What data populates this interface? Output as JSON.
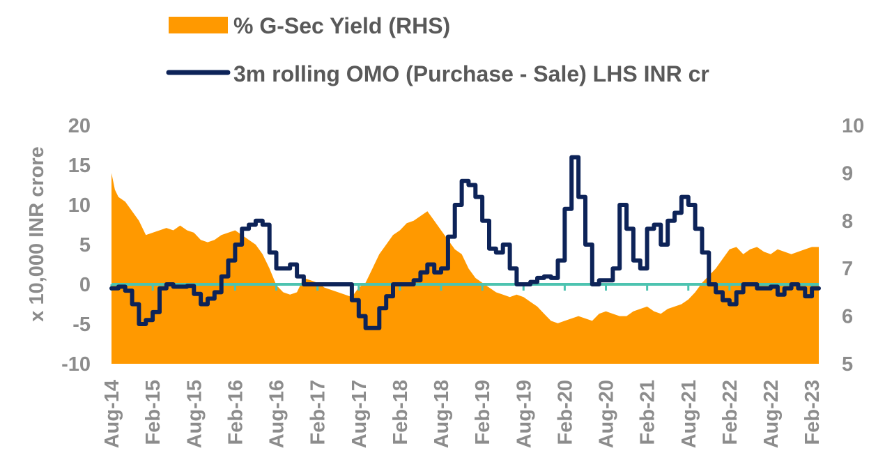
{
  "chart_data": {
    "type": "area+line (dual axis)",
    "title": "",
    "ylabel_left": "x 10,000 INR crore",
    "ylabel_right": "",
    "ylim_left": [
      -10,
      20
    ],
    "ylim_right": [
      5,
      10
    ],
    "yticks_left": [
      "20",
      "15",
      "10",
      "5",
      "0",
      "-5",
      "-10"
    ],
    "yticks_right": [
      "10",
      "9",
      "8",
      "7",
      "6",
      "5"
    ],
    "x_tick_labels": [
      "Aug-14",
      "Feb-15",
      "Aug-15",
      "Feb-16",
      "Aug-16",
      "Feb-17",
      "Aug-17",
      "Feb-18",
      "Aug-18",
      "Feb-19",
      "Aug-19",
      "Feb-20",
      "Aug-20",
      "Feb-21",
      "Aug-21",
      "Feb-22",
      "Aug-22",
      "Feb-23"
    ],
    "legend": [
      {
        "label": "% G-Sec Yield (RHS)",
        "color": "#FF9900",
        "kind": "area"
      },
      {
        "label": "3m rolling OMO (Purchase - Sale) LHS INR cr",
        "color": "#0D2358",
        "kind": "line"
      }
    ],
    "zero_line_color": "#4DC3B0",
    "series": [
      {
        "name": "% G-Sec Yield (RHS)",
        "axis": "right",
        "x_months_from_aug14": [
          0,
          0.5,
          1,
          2,
          3,
          4,
          5,
          6,
          7,
          8,
          9,
          10,
          11,
          12,
          13,
          14,
          15,
          16,
          17,
          18,
          19,
          20,
          21,
          22,
          23,
          24,
          25,
          26,
          27,
          28,
          29,
          30,
          31,
          32,
          33,
          34,
          35,
          36,
          37,
          38,
          39,
          40,
          41,
          42,
          43,
          44,
          45,
          46,
          47,
          48,
          49,
          50,
          51,
          52,
          53,
          54,
          55,
          56,
          57,
          58,
          59,
          60,
          61,
          62,
          63,
          64,
          65,
          66,
          67,
          68,
          69,
          70,
          71,
          72,
          73,
          74,
          75,
          76,
          77,
          78,
          79,
          80,
          81,
          82,
          83,
          84,
          85,
          86,
          87,
          88,
          89,
          90,
          91,
          92,
          93,
          94,
          95,
          96,
          97,
          98,
          99,
          100,
          101,
          102,
          103
        ],
        "values": [
          9.0,
          8.65,
          8.5,
          8.4,
          8.2,
          8.0,
          7.7,
          7.75,
          7.8,
          7.85,
          7.8,
          7.9,
          7.8,
          7.75,
          7.6,
          7.55,
          7.6,
          7.7,
          7.75,
          7.8,
          7.7,
          7.6,
          7.5,
          7.3,
          7.0,
          6.65,
          6.5,
          6.45,
          6.5,
          6.8,
          6.75,
          6.7,
          6.6,
          6.55,
          6.5,
          6.45,
          6.4,
          6.6,
          6.7,
          7.0,
          7.3,
          7.5,
          7.7,
          7.8,
          7.95,
          8.0,
          8.1,
          8.2,
          8.0,
          7.8,
          7.6,
          7.4,
          7.3,
          7.0,
          6.8,
          6.7,
          6.6,
          6.5,
          6.45,
          6.4,
          6.45,
          6.4,
          6.3,
          6.2,
          6.05,
          5.9,
          5.85,
          5.9,
          5.95,
          6.0,
          5.95,
          5.9,
          6.05,
          6.1,
          6.05,
          6.0,
          6.0,
          6.1,
          6.15,
          6.2,
          6.1,
          6.05,
          6.15,
          6.2,
          6.25,
          6.35,
          6.5,
          6.7,
          6.85,
          7.0,
          7.2,
          7.4,
          7.45,
          7.3,
          7.4,
          7.45,
          7.35,
          7.3,
          7.4,
          7.35,
          7.3,
          7.35,
          7.4,
          7.45,
          7.45
        ]
      },
      {
        "name": "3m rolling OMO (Purchase - Sale) LHS INR cr",
        "axis": "left",
        "x_months_from_aug14": [
          0,
          1,
          2,
          3,
          4,
          5,
          6,
          7,
          8,
          9,
          10,
          11,
          12,
          13,
          14,
          15,
          16,
          17,
          18,
          19,
          20,
          21,
          22,
          23,
          24,
          25,
          26,
          27,
          28,
          29,
          30,
          31,
          32,
          33,
          34,
          35,
          36,
          37,
          38,
          39,
          40,
          41,
          42,
          43,
          44,
          45,
          46,
          47,
          48,
          49,
          50,
          51,
          52,
          53,
          54,
          55,
          56,
          57,
          58,
          59,
          60,
          61,
          62,
          63,
          64,
          65,
          66,
          67,
          68,
          69,
          70,
          71,
          72,
          73,
          74,
          75,
          76,
          77,
          78,
          79,
          80,
          81,
          82,
          83,
          84,
          85,
          86,
          87,
          88,
          89,
          90,
          91,
          92,
          93,
          94,
          95,
          96,
          97,
          98,
          99,
          100,
          101,
          102,
          103
        ],
        "values": [
          -0.5,
          -0.3,
          -0.8,
          -2.5,
          -5,
          -4.5,
          -3.5,
          -0.5,
          0,
          -0.3,
          -0.3,
          -0.2,
          -1.2,
          -2.5,
          -1.8,
          -1,
          1,
          3,
          5,
          7,
          7.5,
          8,
          7.5,
          4,
          2,
          2,
          2.5,
          1,
          0,
          0,
          0,
          0,
          0,
          0,
          0,
          -2,
          -4,
          -5.5,
          -5.5,
          -3,
          -1.5,
          0,
          0,
          0,
          0.5,
          1.5,
          2.5,
          1.5,
          2,
          6,
          10,
          13,
          12.5,
          11,
          8,
          4.5,
          4,
          5,
          2,
          0,
          0,
          0.3,
          0.8,
          1,
          0.8,
          3,
          9.5,
          16,
          11,
          5,
          0,
          0.5,
          0.5,
          2,
          10,
          7,
          3,
          2,
          7,
          7.5,
          5,
          8,
          9,
          11,
          10,
          7,
          4,
          0,
          -1,
          -2,
          -2.5,
          -1,
          0,
          0,
          -0.5,
          -0.5,
          -0.3,
          -1.3,
          -0.5,
          0,
          -0.5,
          -1.5,
          -0.5,
          -0.5
        ]
      }
    ]
  }
}
